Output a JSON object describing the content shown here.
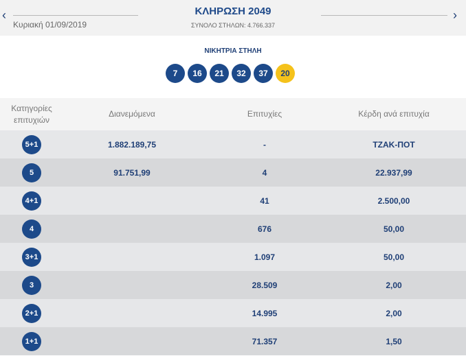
{
  "header": {
    "title": "ΚΛΗΡΩΣΗ 2049",
    "date": "Κυριακή 01/09/2019",
    "total_columns": "ΣΥΝΟΛΟ ΣΤΗΛΩΝ: 4.766.337",
    "prev": "‹",
    "next": "›"
  },
  "winning": {
    "label": "ΝΙΚΗΤΡΙΑ ΣΤΗΛΗ",
    "numbers": [
      "7",
      "16",
      "21",
      "32",
      "37"
    ],
    "bonus": "20",
    "colors": {
      "ball": "#1d4a8a",
      "bonus": "#f5c21b"
    }
  },
  "table": {
    "headers": [
      "Κατηγορίες επιτυχιών",
      "Διανεμόμενα",
      "Επιτυχίες",
      "Κέρδη ανά επιτυχία"
    ],
    "rows": [
      {
        "category": "5+1",
        "distributed": "1.882.189,75",
        "winners": "-",
        "prize": "ΤΖΑΚ-ΠΟΤ"
      },
      {
        "category": "5",
        "distributed": "91.751,99",
        "winners": "4",
        "prize": "22.937,99"
      },
      {
        "category": "4+1",
        "distributed": "",
        "winners": "41",
        "prize": "2.500,00"
      },
      {
        "category": "4",
        "distributed": "",
        "winners": "676",
        "prize": "50,00"
      },
      {
        "category": "3+1",
        "distributed": "",
        "winners": "1.097",
        "prize": "50,00"
      },
      {
        "category": "3",
        "distributed": "",
        "winners": "28.509",
        "prize": "2,00"
      },
      {
        "category": "2+1",
        "distributed": "",
        "winners": "14.995",
        "prize": "2,00"
      },
      {
        "category": "1+1",
        "distributed": "",
        "winners": "71.357",
        "prize": "1,50"
      }
    ]
  }
}
